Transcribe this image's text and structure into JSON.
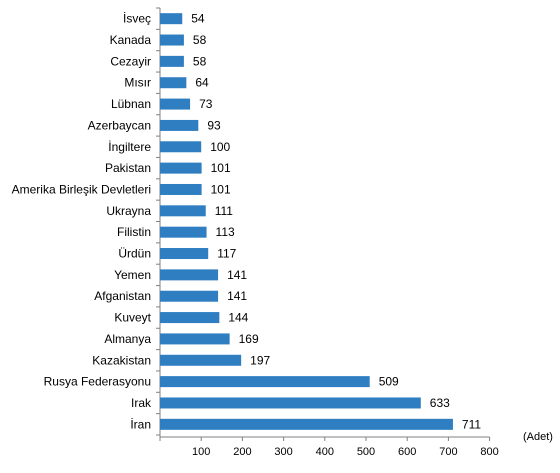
{
  "chart_data": {
    "type": "bar",
    "orientation": "horizontal",
    "categories": [
      "İsveç",
      "Kanada",
      "Cezayir",
      "Mısır",
      "Lübnan",
      "Azerbaycan",
      "İngiltere",
      "Pakistan",
      "Amerika Birleşik Devletleri",
      "Ukrayna",
      "Filistin",
      "Ürdün",
      "Yemen",
      "Afganistan",
      "Kuveyt",
      "Almanya",
      "Kazakistan",
      "Rusya Federasyonu",
      "Irak",
      "İran"
    ],
    "values": [
      54,
      58,
      58,
      64,
      73,
      93,
      100,
      101,
      101,
      111,
      113,
      117,
      141,
      141,
      144,
      169,
      197,
      509,
      633,
      711
    ],
    "x_ticks": [
      100,
      200,
      300,
      400,
      500,
      600,
      700,
      800
    ],
    "xlim": [
      0,
      800
    ],
    "unit_label": "(Adet)",
    "grid": false,
    "legend": "none",
    "bar_color": "#2E7EC1"
  }
}
